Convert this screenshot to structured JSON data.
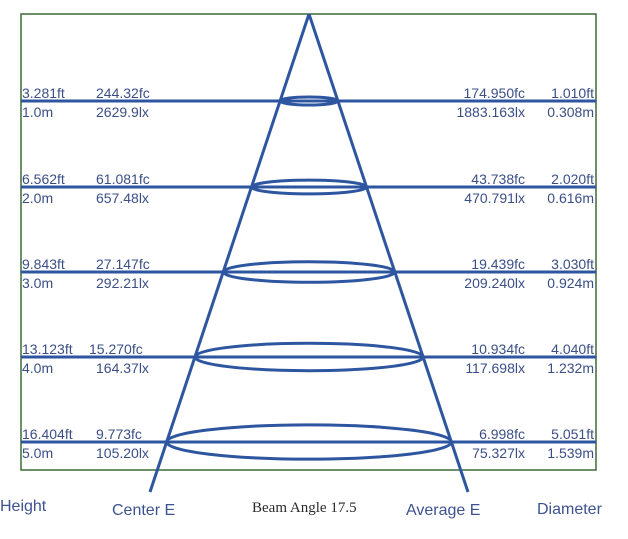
{
  "colors": {
    "beam": "#2e56a0",
    "frame": "#3d6b37",
    "text": "#3b4f86"
  },
  "rows": [
    {
      "height_ft": "3.281ft",
      "height_m": "1.0m",
      "center_fc": "244.32fc",
      "center_lx": "2629.9lx",
      "avg_fc": "174.950fc",
      "avg_lx": "1883.163lx",
      "diam_ft": "1.010ft",
      "diam_m": "0.308m"
    },
    {
      "height_ft": "6.562ft",
      "height_m": "2.0m",
      "center_fc": "61.081fc",
      "center_lx": "657.48lx",
      "avg_fc": "43.738fc",
      "avg_lx": "470.791lx",
      "diam_ft": "2.020ft",
      "diam_m": "0.616m"
    },
    {
      "height_ft": "9.843ft",
      "height_m": "3.0m",
      "center_fc": "27.147fc",
      "center_lx": "292.21lx",
      "avg_fc": "19.439fc",
      "avg_lx": "209.240lx",
      "diam_ft": "3.030ft",
      "diam_m": "0.924m"
    },
    {
      "height_ft": "13.123ft",
      "height_m": "4.0m",
      "center_fc": "15.270fc",
      "center_lx": "164.37lx",
      "avg_fc": "10.934fc",
      "avg_lx": "117.698lx",
      "diam_ft": "4.040ft",
      "diam_m": "1.232m"
    },
    {
      "height_ft": "16.404ft",
      "height_m": "5.0m",
      "center_fc": "9.773fc",
      "center_lx": "105.20lx",
      "avg_fc": "6.998fc",
      "avg_lx": "75.327lx",
      "diam_ft": "5.051ft",
      "diam_m": "1.539m"
    }
  ],
  "footer": {
    "height": "Height",
    "center": "Center E",
    "beam_angle": "Beam Angle 17.5",
    "average": "Average E",
    "diameter": "Diameter"
  }
}
